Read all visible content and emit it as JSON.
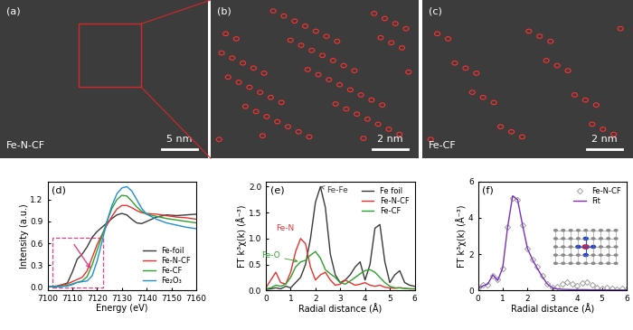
{
  "images": [
    {
      "title": "(a)",
      "sample": "Fe-N-CF",
      "scale_bar": "5 nm"
    },
    {
      "title": "(b)",
      "scale_bar": "2 nm"
    },
    {
      "title": "(c)",
      "sample": "Fe-CF",
      "scale_bar": "2 nm"
    }
  ],
  "chart_data": [
    {
      "type": "line",
      "title": "(d)",
      "x_label": "Energy (eV)",
      "y_label": "Intensity (a.u.)",
      "x": [
        7100,
        7104,
        7108,
        7110,
        7112,
        7114,
        7116,
        7118,
        7120,
        7122,
        7124,
        7126,
        7128,
        7130,
        7132,
        7134,
        7136,
        7138,
        7140,
        7144,
        7148,
        7152,
        7156,
        7160
      ],
      "series": [
        {
          "name": "Fe-foil",
          "color": "#3a3a3a",
          "line_style": "solid",
          "values": [
            0,
            0.01,
            0.05,
            0.2,
            0.38,
            0.45,
            0.55,
            0.68,
            0.76,
            0.82,
            0.88,
            0.94,
            0.99,
            1.01,
            0.99,
            0.93,
            0.88,
            0.87,
            0.9,
            0.96,
            0.99,
            0.98,
            0.99,
            1.0
          ]
        },
        {
          "name": "Fe-N-CF",
          "color": "#e8312f",
          "line_style": "solid",
          "values": [
            0,
            0.01,
            0.04,
            0.07,
            0.1,
            0.13,
            0.22,
            0.4,
            0.58,
            0.72,
            0.85,
            0.97,
            1.07,
            1.12,
            1.12,
            1.09,
            1.05,
            1.02,
            1.01,
            1.0,
            0.98,
            0.96,
            0.95,
            0.93
          ]
        },
        {
          "name": "Fe-CF",
          "color": "#2ca02c",
          "line_style": "solid",
          "values": [
            0,
            0.0,
            0.02,
            0.04,
            0.06,
            0.08,
            0.14,
            0.3,
            0.5,
            0.7,
            0.9,
            1.08,
            1.2,
            1.26,
            1.25,
            1.18,
            1.1,
            1.04,
            1.0,
            0.97,
            0.94,
            0.92,
            0.9,
            0.88
          ]
        },
        {
          "name": "Fe₂O₃",
          "color": "#1f8fd6",
          "line_style": "solid",
          "values": [
            0,
            0,
            0.01,
            0.03,
            0.06,
            0.07,
            0.08,
            0.15,
            0.35,
            0.62,
            0.9,
            1.12,
            1.28,
            1.36,
            1.38,
            1.32,
            1.2,
            1.08,
            1.0,
            0.93,
            0.88,
            0.85,
            0.82,
            0.8
          ]
        }
      ],
      "xlim": [
        7100,
        7160
      ],
      "xticks": [
        7100,
        7110,
        7120,
        7130,
        7140,
        7150,
        7160
      ],
      "ylim": [
        -0.05,
        1.45
      ],
      "yticks": [
        {
          "value": 0,
          "label": "0.0"
        },
        {
          "value": 0.3,
          "label": "0.3"
        },
        {
          "value": 0.6,
          "label": "0.6"
        },
        {
          "value": 0.9,
          "label": "0.9"
        },
        {
          "value": 1.2,
          "label": "1.2"
        }
      ],
      "legend": "lower right"
    },
    {
      "type": "line",
      "title": "(e)",
      "x_label": "Radial distance (Å)",
      "y_label": "FT k³χ(k) (Å⁻³)",
      "x": [
        0,
        0.2,
        0.4,
        0.6,
        0.8,
        1.0,
        1.2,
        1.4,
        1.6,
        1.8,
        2.0,
        2.2,
        2.4,
        2.6,
        2.8,
        3.0,
        3.2,
        3.4,
        3.6,
        3.8,
        4.0,
        4.2,
        4.4,
        4.6,
        4.8,
        5.0,
        5.2,
        5.4,
        5.6,
        5.8,
        6.0
      ],
      "series": [
        {
          "name": "Fe foil",
          "color": "#3a3a3a",
          "line_style": "solid",
          "values": [
            0.02,
            0.03,
            0.05,
            0.03,
            0.08,
            0.05,
            0.15,
            0.25,
            0.5,
            1.0,
            1.7,
            2.0,
            1.6,
            0.7,
            0.3,
            0.15,
            0.2,
            0.3,
            0.45,
            0.55,
            0.2,
            0.5,
            1.2,
            1.27,
            0.55,
            0.15,
            0.3,
            0.38,
            0.15,
            0.1,
            0.08
          ]
        },
        {
          "name": "Fe-N-CF",
          "color": "#e8312f",
          "line_style": "solid",
          "values": [
            0.05,
            0.2,
            0.35,
            0.15,
            0.12,
            0.35,
            0.75,
            1.0,
            0.9,
            0.45,
            0.2,
            0.3,
            0.35,
            0.2,
            0.1,
            0.12,
            0.2,
            0.15,
            0.1,
            0.12,
            0.15,
            0.1,
            0.08,
            0.1,
            0.06,
            0.05,
            0.04,
            0.05,
            0.04,
            0.03,
            0.03
          ]
        },
        {
          "name": "Fe-CF",
          "color": "#2ca02c",
          "line_style": "solid",
          "values": [
            0.03,
            0.05,
            0.1,
            0.08,
            0.12,
            0.25,
            0.45,
            0.55,
            0.58,
            0.68,
            0.75,
            0.62,
            0.4,
            0.32,
            0.25,
            0.15,
            0.12,
            0.18,
            0.25,
            0.32,
            0.38,
            0.4,
            0.35,
            0.25,
            0.15,
            0.08,
            0.05,
            0.05,
            0.04,
            0.03,
            0.03
          ]
        }
      ],
      "annotations": [
        {
          "text": "Fe-Fe",
          "series": "Fe foil",
          "x": 2.2
        },
        {
          "text": "Fe-N",
          "series": "Fe-N-CF",
          "x": 1.4
        },
        {
          "text": "Fe-O",
          "series": "Fe-CF",
          "x": 1.4
        }
      ],
      "xlim": [
        0,
        6
      ],
      "xticks": [
        0,
        1,
        2,
        3,
        4,
        5,
        6
      ],
      "ylim": [
        0,
        2.1
      ],
      "yticks": [
        {
          "value": 0,
          "label": "0.0"
        },
        {
          "value": 0.5,
          "label": "0.5"
        },
        {
          "value": 1.0,
          "label": "1.0"
        },
        {
          "value": 1.5,
          "label": "1.5"
        },
        {
          "value": 2.0,
          "label": "2.0"
        }
      ],
      "legend": "upper right"
    },
    {
      "type": "line",
      "title": "(f)",
      "x_label": "Radial distance (Å)",
      "y_label": "FT k³χ(k) (Å⁻³)",
      "x": [
        0,
        0.2,
        0.4,
        0.6,
        0.8,
        1.0,
        1.2,
        1.4,
        1.6,
        1.8,
        2.0,
        2.2,
        2.4,
        2.6,
        2.8,
        3.0,
        3.2,
        3.4,
        3.6,
        3.8,
        4.0,
        4.2,
        4.4,
        4.6,
        4.8,
        5.0,
        5.2,
        5.4,
        5.6,
        5.8,
        6.0
      ],
      "series": [
        {
          "name": "Fe-N-CF",
          "color": "#9e9e9e",
          "line_style": "none",
          "marker": "diamond",
          "values": [
            0.15,
            0.3,
            0.3,
            0.8,
            0.6,
            1.2,
            3.5,
            5.1,
            5.0,
            3.6,
            2.3,
            1.7,
            1.3,
            0.8,
            0.35,
            0.15,
            0.2,
            0.35,
            0.45,
            0.35,
            0.25,
            0.4,
            0.45,
            0.3,
            0.15,
            0.1,
            0.15,
            0.12,
            0.08,
            0.1,
            0.08
          ]
        },
        {
          "name": "Fit",
          "color": "#7b2fbe",
          "line_style": "solid",
          "values": [
            0.1,
            0.25,
            0.35,
            0.85,
            0.55,
            1.25,
            3.5,
            5.2,
            5.0,
            3.6,
            2.3,
            1.7,
            1.2,
            0.75,
            0.35,
            0.15,
            0.08,
            0.06,
            0.05,
            0.04,
            0.04,
            0.04,
            0.04,
            0.03,
            0.03,
            0.03,
            0.02,
            0.02,
            0.02,
            0.02,
            0.02
          ]
        }
      ],
      "xlim": [
        0,
        6
      ],
      "xticks": [
        0,
        1,
        2,
        3,
        4,
        5,
        6
      ],
      "ylim": [
        0,
        6
      ],
      "yticks": [
        0,
        2,
        4,
        6
      ],
      "legend": "upper right"
    }
  ]
}
